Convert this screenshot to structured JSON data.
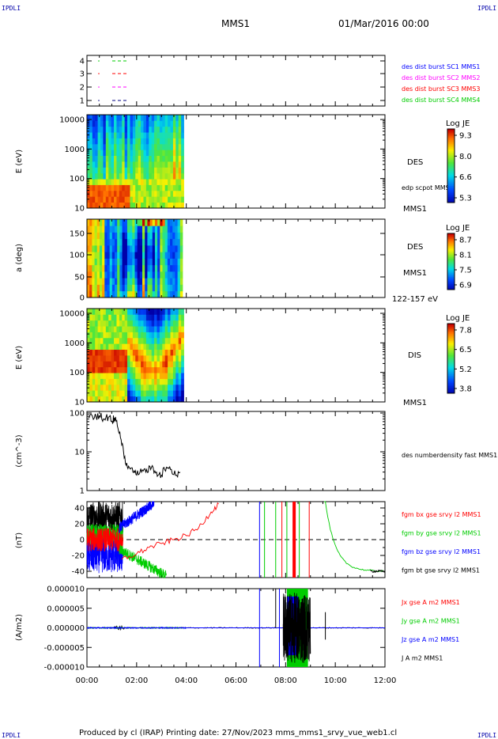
{
  "header": {
    "title": "MMS1",
    "date": "01/Mar/2016 00:00",
    "corner_label": "IPDLI"
  },
  "footer": {
    "text": "Produced by cl (IRAP)   Printing date: 27/Nov/2023   mms_mms1_srvy_vue_web1.cl"
  },
  "time_axis": {
    "ticks": [
      "00:00",
      "02:00",
      "04:00",
      "06:00",
      "08:00",
      "10:00",
      "12:00"
    ],
    "range_hours": [
      0,
      12
    ]
  },
  "panels": {
    "avail": {
      "yticks": [
        "1",
        "2",
        "3",
        "4"
      ],
      "labels": [
        {
          "text": "des dist burst SC1 MMS1",
          "color": "#0000ff"
        },
        {
          "text": "des dist burst SC2 MMS2",
          "color": "#ff00ff"
        },
        {
          "text": "des dist burst SC3 MMS3",
          "color": "#ff0000"
        },
        {
          "text": "des dist burst SC4 MMS4",
          "color": "#00cc00"
        }
      ]
    },
    "des_energy": {
      "ylabel": "E (eV)",
      "yticks": [
        "10",
        "100",
        "1000",
        "10000"
      ],
      "name": "DES",
      "sub": "edp scpot MMS1",
      "sat": "MMS1",
      "cbar_title": "Log JE",
      "cbar_ticks": [
        "9.3",
        "8.0",
        "6.6",
        "5.3"
      ]
    },
    "des_pitch": {
      "ylabel": "a (deg)",
      "yticks": [
        "0",
        "50",
        "100",
        "150"
      ],
      "name": "DES",
      "sat": "MMS1",
      "range": "122-157 eV",
      "cbar_title": "Log JE",
      "cbar_ticks": [
        "8.7",
        "8.1",
        "7.5",
        "6.9"
      ]
    },
    "dis_energy": {
      "ylabel": "E (eV)",
      "yticks": [
        "10",
        "100",
        "1000",
        "10000"
      ],
      "name": "DIS",
      "sat": "MMS1",
      "cbar_title": "Log JE",
      "cbar_ticks": [
        "7.8",
        "6.5",
        "5.2",
        "3.8"
      ]
    },
    "density": {
      "ylabel": "(cm^-3)",
      "yticks": [
        "1",
        "10",
        "100"
      ],
      "label": "des numberdensity fast MMS1"
    },
    "field": {
      "ylabel": "(nT)",
      "yticks": [
        "-40",
        "-20",
        "0",
        "20",
        "40"
      ],
      "labels": [
        {
          "text": "fgm bx gse srvy l2 MMS1",
          "color": "#ff0000"
        },
        {
          "text": "fgm by gse srvy l2 MMS1",
          "color": "#00cc00"
        },
        {
          "text": "fgm bz gse srvy l2 MMS1",
          "color": "#0000ff"
        },
        {
          "text": "fgm bt gse srvy l2 MMS1",
          "color": "#000000"
        }
      ]
    },
    "current": {
      "ylabel": "(A/m2)",
      "yticks": [
        "-0.000010",
        "-0.000005",
        "0.000000",
        "0.000005",
        "0.000010"
      ],
      "labels": [
        {
          "text": "Jx gse A m2 MMS1",
          "color": "#ff0000"
        },
        {
          "text": "Jy gse A m2 MMS1",
          "color": "#00cc00"
        },
        {
          "text": "Jz gse A m2 MMS1",
          "color": "#0000ff"
        },
        {
          "text": "J A m2 MMS1",
          "color": "#000000"
        }
      ]
    }
  },
  "chart_data": [
    {
      "type": "line",
      "name": "density",
      "x_hours": [
        0.05,
        0.3,
        0.5,
        0.7,
        0.9,
        1.0,
        1.1,
        1.25,
        1.4,
        1.55,
        1.7,
        1.85,
        2.0,
        2.2,
        2.4,
        2.6,
        2.8,
        3.0,
        3.2,
        3.4,
        3.6,
        3.75
      ],
      "values": [
        80,
        75,
        85,
        70,
        80,
        60,
        75,
        40,
        15,
        5,
        4,
        3,
        2.5,
        3,
        3.5,
        4,
        3,
        2.5,
        4,
        3.5,
        2.5,
        3
      ]
    },
    {
      "type": "line",
      "name": "magnetic field",
      "x_hours": [
        1.4,
        2.0,
        2.5,
        3.0,
        3.5,
        4.0,
        4.5,
        5.0,
        5.3
      ],
      "series": [
        {
          "name": "fgm bx gse srvy l2 MMS1",
          "values": [
            -25,
            -18,
            -10,
            -5,
            0,
            5,
            15,
            35,
            45
          ]
        }
      ],
      "ylim": [
        -48,
        48
      ]
    }
  ]
}
